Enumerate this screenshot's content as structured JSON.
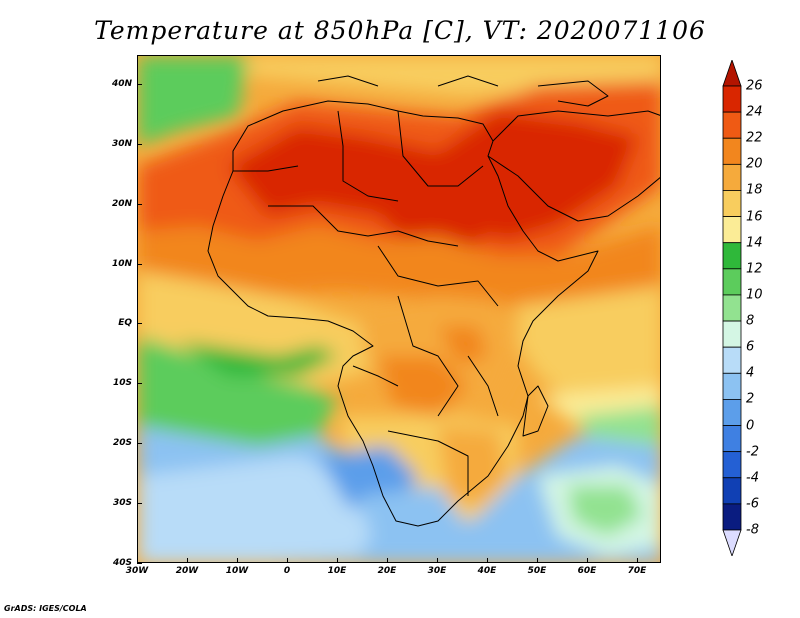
{
  "title": "Temperature at 850hPa [C], VT: 2020071106",
  "credit": "GrADS: IGES/COLA",
  "map": {
    "lat_labels": [
      "40N",
      "30N",
      "20N",
      "10N",
      "EQ",
      "10S",
      "20S",
      "30S",
      "40S"
    ],
    "lon_labels": [
      "30W",
      "20W",
      "10W",
      "0",
      "10E",
      "20E",
      "30E",
      "40E",
      "50E",
      "60E",
      "70E"
    ],
    "lon_range": [
      -30,
      76
    ],
    "lat_range": [
      -40,
      45
    ]
  },
  "colorbar": {
    "labels": [
      "26",
      "24",
      "22",
      "20",
      "18",
      "16",
      "14",
      "12",
      "10",
      "8",
      "6",
      "4",
      "2",
      "0",
      "-2",
      "-4",
      "-6",
      "-8"
    ],
    "colors": [
      "#b31400",
      "#d92600",
      "#ef5a14",
      "#f2861e",
      "#f5aa3c",
      "#f8cd5e",
      "#fbec96",
      "#2fb83a",
      "#5ccc5c",
      "#92e290",
      "#d4f6e4",
      "#b8dcf8",
      "#8cc2f2",
      "#5c9eea",
      "#3f80e2",
      "#2460d4",
      "#1040b4",
      "#0a1c80",
      "#dcdcff"
    ],
    "min": -8,
    "max": 26,
    "step": 2
  }
}
